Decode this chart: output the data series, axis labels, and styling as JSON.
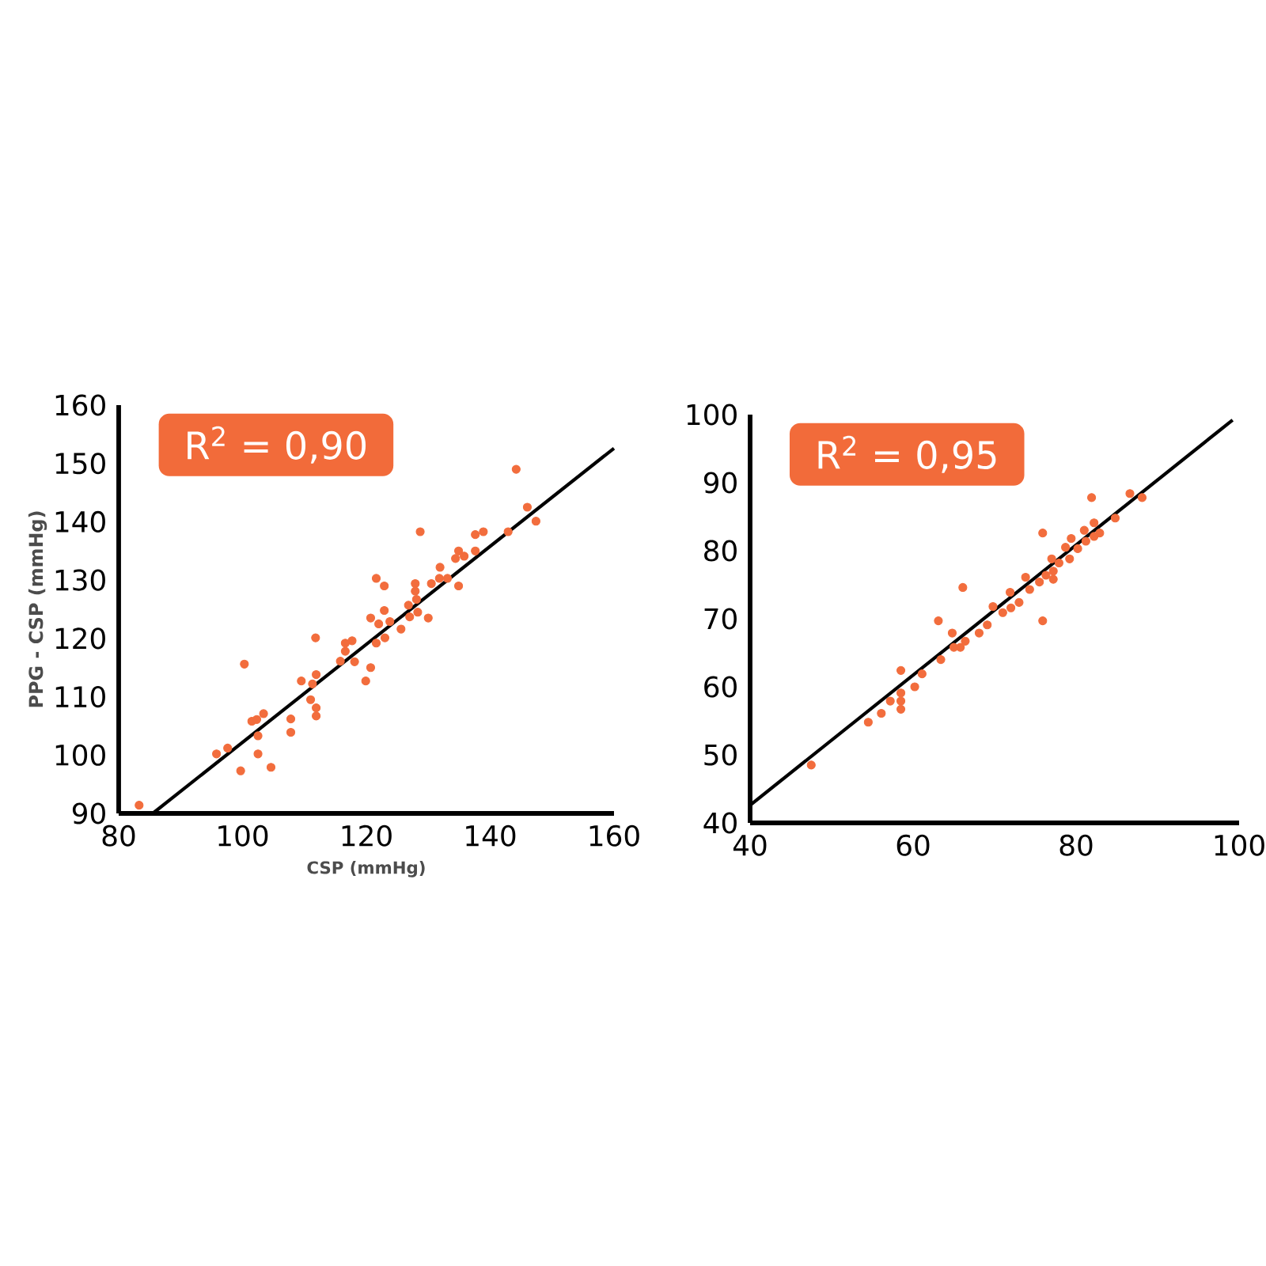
{
  "chart_data": [
    {
      "type": "scatter",
      "xlabel": "CSP (mmHg)",
      "ylabel": "PPG - CSP (mmHg)",
      "annotations": [
        "R$^{2}$ = 0,90"
      ],
      "xlim": [
        80,
        160
      ],
      "ylim": [
        90,
        160
      ],
      "xticks": [
        80,
        100,
        120,
        140,
        160
      ],
      "yticks": [
        90,
        100,
        110,
        120,
        130,
        140,
        150,
        160
      ],
      "grid": false,
      "legend": false,
      "series": [
        {
          "color": "#f26d3d",
          "marker": "circle",
          "x": [
            83.3,
            95.8,
            97.6,
            99.7,
            100.3,
            101.5,
            102.3,
            103.4,
            102.5,
            102.5,
            104.6,
            107.8,
            107.8,
            109.5,
            111.0,
            111.3,
            111.9,
            111.9,
            111.9,
            111.8,
            115.8,
            116.6,
            116.6,
            117.7,
            118.1,
            119.9,
            120.7,
            120.7,
            121.6,
            122.0,
            121.6,
            122.9,
            122.9,
            123.0,
            123.8,
            125.6,
            126.8,
            127.0,
            127.9,
            127.9,
            128.1,
            128.3,
            128.7,
            130.0,
            130.5,
            131.8,
            131.9,
            133.1,
            134.4,
            134.9,
            134.9,
            135.8,
            137.6,
            137.6,
            138.9,
            142.9,
            144.2,
            146.0,
            147.4
          ],
          "values": [
            91.4,
            100.2,
            101.2,
            97.3,
            115.6,
            105.8,
            106.1,
            107.1,
            103.3,
            100.2,
            97.9,
            106.2,
            103.9,
            112.7,
            109.5,
            112.2,
            113.8,
            108.1,
            106.7,
            120.1,
            116.1,
            117.8,
            119.2,
            119.6,
            116.0,
            112.7,
            115.0,
            123.5,
            119.2,
            122.5,
            130.3,
            129.0,
            124.8,
            120.1,
            122.9,
            121.6,
            125.7,
            123.7,
            129.4,
            128.1,
            126.7,
            124.5,
            138.3,
            123.5,
            129.4,
            130.3,
            132.2,
            130.3,
            133.7,
            135.0,
            129.0,
            134.1,
            137.8,
            135.0,
            138.3,
            138.3,
            149.0,
            142.5,
            140.1
          ]
        },
        {
          "type": "line",
          "marker": "none",
          "color": "#000000",
          "x": [
            85.5,
            160
          ],
          "values": [
            90,
            152.6
          ]
        }
      ]
    },
    {
      "type": "scatter",
      "annotations": [
        "R$^{2}$ = 0,95"
      ],
      "xlim": [
        40,
        100
      ],
      "ylim": [
        40,
        100
      ],
      "xticks": [
        40,
        60,
        80,
        100
      ],
      "yticks": [
        40,
        50,
        60,
        70,
        80,
        90,
        100
      ],
      "grid": false,
      "legend": false,
      "series": [
        {
          "color": "#f26d3d",
          "marker": "circle",
          "x": [
            47.5,
            54.5,
            56.1,
            57.2,
            58.5,
            58.5,
            58.5,
            58.5,
            60.2,
            61.1,
            63.1,
            63.4,
            64.8,
            65.0,
            65.8,
            66.4,
            66.1,
            68.1,
            69.1,
            69.8,
            71.0,
            71.9,
            72.0,
            73.0,
            73.8,
            74.3,
            75.5,
            75.9,
            75.9,
            76.3,
            77.0,
            77.2,
            77.2,
            77.9,
            78.7,
            79.2,
            79.4,
            80.2,
            81.0,
            81.2,
            81.9,
            82.2,
            82.2,
            82.9,
            84.8,
            86.6,
            88.1
          ],
          "values": [
            48.5,
            54.8,
            56.1,
            57.9,
            62.4,
            59.1,
            57.9,
            56.7,
            60.0,
            61.9,
            69.7,
            64.0,
            67.9,
            65.8,
            65.8,
            66.7,
            74.6,
            67.9,
            69.1,
            71.8,
            70.9,
            73.9,
            71.6,
            72.4,
            76.1,
            74.3,
            75.4,
            82.6,
            69.7,
            76.4,
            78.8,
            77.0,
            75.8,
            78.2,
            80.5,
            78.8,
            81.8,
            80.3,
            83.0,
            81.4,
            87.8,
            84.1,
            82.1,
            82.6,
            84.8,
            88.4,
            87.8
          ]
        },
        {
          "type": "line",
          "marker": "none",
          "color": "#000000",
          "x": [
            40,
            99.2
          ],
          "values": [
            42.6,
            99.2
          ]
        }
      ]
    }
  ]
}
